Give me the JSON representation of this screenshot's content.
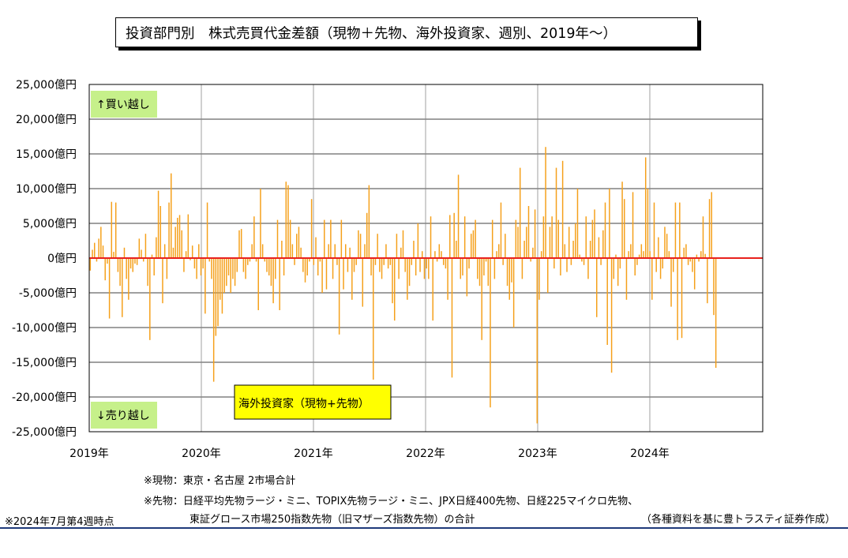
{
  "chart_data": {
    "type": "bar",
    "title": "投資部門別　株式売買代金差額（現物＋先物、海外投資家、週別、2019年～）",
    "series": [
      {
        "name": "海外投資家（現物+先物）",
        "color": "#f5a01a"
      }
    ],
    "x_tick_labels": [
      "2019年",
      "2020年",
      "2021年",
      "2022年",
      "2023年",
      "2024年"
    ],
    "y_tick_labels": [
      "25,000億円",
      "20,000億円",
      "15,000億円",
      "10,000億円",
      "5,000億円",
      "0億円",
      "-5,000億円",
      "-10,000億円",
      "-15,000億円",
      "-20,000億円",
      "-25,000億円"
    ],
    "ylim": [
      -25000,
      25000
    ],
    "y_unit": "億円",
    "zero_line_color": "#e8211d",
    "grid": true,
    "annotations": {
      "buy": "↑買い越し",
      "sell": "↓売り越し"
    },
    "values": [
      -1800,
      1200,
      2200,
      -500,
      2800,
      4500,
      1800,
      -3200,
      -800,
      -8700,
      8100,
      900,
      8000,
      -2000,
      -4000,
      -8500,
      1500,
      -3000,
      -6000,
      -1500,
      -2000,
      -800,
      -1000,
      2800,
      1200,
      -500,
      3500,
      -4000,
      -11800,
      500,
      -2500,
      3000,
      9700,
      7500,
      -6500,
      2000,
      -3000,
      8000,
      12200,
      1500,
      4500,
      5800,
      6200,
      4000,
      -2000,
      1000,
      6300,
      -300,
      1800,
      -1500,
      -3000,
      2000,
      -2500,
      -1500,
      -8000,
      8000,
      -500,
      -3000,
      -17800,
      -11200,
      -9800,
      -6000,
      -8000,
      -5000,
      -4000,
      -2500,
      -5000,
      -3000,
      -4000,
      -2000,
      4000,
      4200,
      -2000,
      -3000,
      -1000,
      -500,
      2000,
      6000,
      -500,
      -7500,
      10000,
      2000,
      -500,
      -2000,
      -2500,
      -4000,
      -6500,
      -3000,
      5500,
      -7500,
      2500,
      -2500,
      11000,
      10500,
      5500,
      2000,
      -1000,
      3500,
      4500,
      1500,
      -2000,
      -3500,
      -2500,
      -500,
      8500,
      -1000,
      3000,
      -2500,
      -500,
      -5000,
      5500,
      -4500,
      2000,
      5500,
      -3000,
      2000,
      -1000,
      -11000,
      5500,
      -4500,
      2000,
      -2000,
      1500,
      -6000,
      -2000,
      -1000,
      4000,
      3500,
      -7000,
      2000,
      6500,
      10500,
      -2500,
      -17500,
      -1000,
      3500,
      -2000,
      -3000,
      -1000,
      2000,
      -1500,
      -1000,
      -6500,
      -9000,
      3500,
      -3000,
      1500,
      4000,
      -2000,
      -6000,
      -4000,
      -1000,
      2500,
      -2500,
      5000,
      -2000,
      1000,
      -3000,
      -1500,
      -3000,
      6000,
      -9000,
      1000,
      -500,
      2000,
      1000,
      -1000,
      -1500,
      -6000,
      6200,
      -17200,
      6500,
      2500,
      12000,
      -3000,
      -2500,
      6000,
      -5500,
      -1500,
      3500,
      4000,
      5500,
      -3000,
      -4000,
      -11800,
      -2500,
      -500,
      -4000,
      -21500,
      5500,
      -3000,
      1000,
      2000,
      8000,
      -1000,
      3500,
      -4000,
      -6000,
      -3500,
      -10000,
      5500,
      4500,
      13000,
      -3000,
      2500,
      4500,
      7500,
      -500,
      1500,
      7000,
      -23800,
      -6000,
      1000,
      6000,
      16000,
      -5000,
      4500,
      6000,
      -1500,
      13000,
      5500,
      -2500,
      14000,
      2000,
      -2000,
      4500,
      -1000,
      2500,
      5000,
      10000,
      500,
      -500,
      -1000,
      6000,
      -3000,
      2500,
      5500,
      7000,
      -8500,
      3000,
      -1000,
      4000,
      8000,
      -12500,
      10000,
      -16500,
      -3000,
      500,
      -4000,
      -1500,
      11000,
      8500,
      -6000,
      1000,
      2000,
      9500,
      -2500,
      -1000,
      500,
      2000,
      1000,
      14500,
      10000,
      1000,
      -6000,
      8000,
      -2000,
      3000,
      -3000,
      -1500,
      4500,
      3500,
      1000,
      -7000,
      -2000,
      8000,
      -11800,
      8000,
      -11500,
      1500,
      2000,
      -1000,
      -500,
      -2000,
      -4500,
      500,
      -500,
      1000,
      6000,
      600,
      -6500,
      8500,
      9500,
      -8200,
      -15800
    ]
  },
  "legend_label": "海外投資家（現物+先物）",
  "notes": {
    "genbutsu": "※現物：東京・名古屋 2市場合計",
    "sakimono1": "※先物：日経平均先物ラージ・ミニ、TOPIX先物ラージ・ミニ、JPX日経400先物、日経225マイクロ先物、",
    "sakimono2": "東証グロース市場250指数先物（旧マザーズ指数先物）の合計",
    "asof": "※2024年7月第4週時点",
    "source": "（各種資料を基に豊トラスティ証券作成）"
  }
}
